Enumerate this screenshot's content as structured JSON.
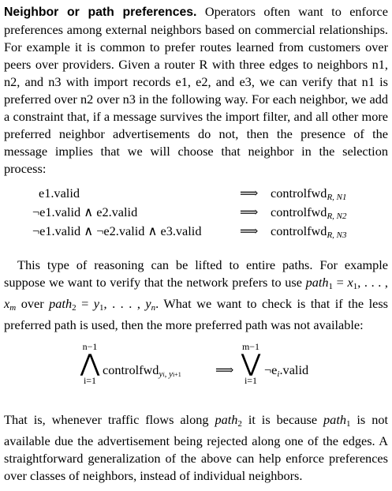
{
  "paragraph1": {
    "runin_heading": "Neighbor or path preferences.",
    "text": "Operators often want to enforce preferences among external neighbors based on commercial relationships. For example it is common to prefer routes learned from customers over peers over providers. Given a router R with three edges to neighbors n1, n2, and n3 with import records e1, e2, and e3, we can verify that n1 is preferred over n2 over n3 in the following way. For each neighbor, we add a constraint that, if a message survives the import filter, and all other more preferred neighbor advertisements do not, then the presence of the message implies that we will choose that neighbor in the selection process:"
  },
  "equations": [
    {
      "lhs": "e1.valid",
      "arrow": "⟹",
      "rhs_base": "controlfwd",
      "rhs_sub": "R, N1"
    },
    {
      "lhs": "¬e1.valid ∧  e2.valid",
      "arrow": "⟹",
      "rhs_base": "controlfwd",
      "rhs_sub": "R, N2"
    },
    {
      "lhs": "¬e1.valid ∧ ¬e2.valid ∧ e3.valid",
      "arrow": "⟹",
      "rhs_base": "controlfwd",
      "rhs_sub": "R, N3"
    }
  ],
  "paragraph2": {
    "t1": "This type of reasoning can be lifted to entire paths. For example suppose we want to verify that the network prefers to use ",
    "path1": "path",
    "path1_sub": "1",
    "t2": " = ",
    "x_seq": "x",
    "x_sub1": "1",
    "x_mid": ", . . . , ",
    "x_m": "x",
    "x_sub_m": "m",
    "t3": " over ",
    "path2": "path",
    "path2_sub": "2",
    "t4": " = ",
    "y_seq": "y",
    "y_sub1": "1",
    "y_mid": ", . . . , ",
    "y_n": "y",
    "y_sub_n": "n",
    "t5": ". What we want to check is that if the less preferred path is used, then the more preferred path was not available:"
  },
  "display": {
    "and_upper": "n−1",
    "and_symbol": "⋀",
    "and_lower": "i=1",
    "and_body": "controlfwd",
    "and_body_sub": "y",
    "and_body_sub_i": "i",
    "and_body_sub_rest": ", y",
    "and_body_sub_i1": "i+1",
    "arrow": "⟹",
    "or_upper": "m−1",
    "or_symbol": "⋁",
    "or_lower": "i=1",
    "or_body_pre": "¬e",
    "or_body_sub": "i",
    "or_body_post": ".valid"
  },
  "paragraph3": {
    "t1": "That is, whenever traffic flows along ",
    "path2": "path",
    "path2_sub": "2",
    "t2": " it is because ",
    "path1": "path",
    "path1_sub": "1",
    "t3": " is not available due the advertisement being rejected along one of the edges. A straightforward generalization of the above can help enforce preferences over classes of neighbors, instead of individual neighbors."
  }
}
